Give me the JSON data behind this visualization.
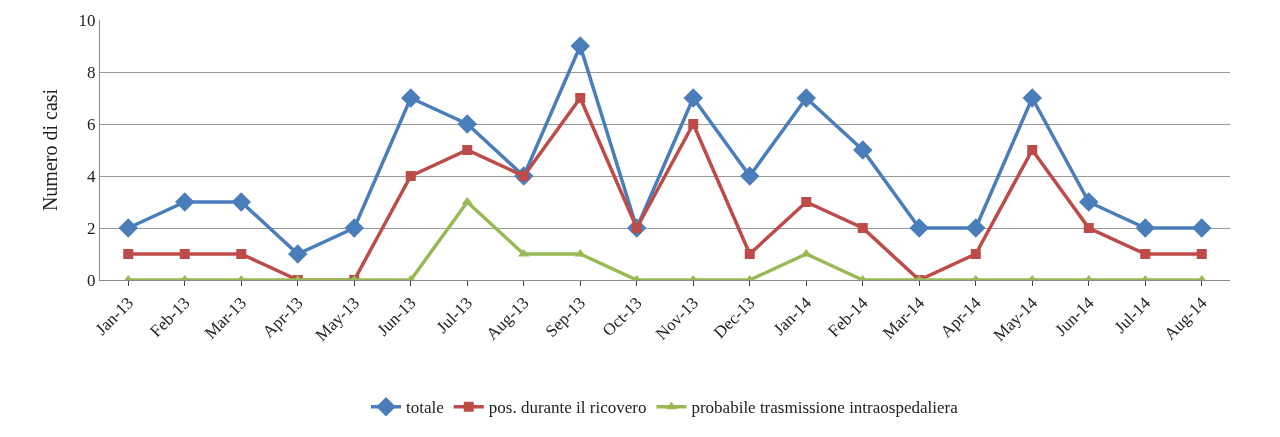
{
  "chart_data": {
    "type": "line",
    "ylabel": "Numero di casi",
    "categories": [
      "Jan-13",
      "Feb-13",
      "Mar-13",
      "Apr-13",
      "May-13",
      "Jun-13",
      "Jul-13",
      "Aug-13",
      "Sep-13",
      "Oct-13",
      "Nov-13",
      "Dec-13",
      "Jan-14",
      "Feb-14",
      "Mar-14",
      "Apr-14",
      "May-14",
      "Jun-14",
      "Jul-14",
      "Aug-14"
    ],
    "series": [
      {
        "name": "totale",
        "color": "#4a7ebb",
        "marker": "diamond",
        "values": [
          2,
          3,
          3,
          1,
          2,
          7,
          6,
          4,
          9,
          2,
          7,
          4,
          7,
          5,
          2,
          2,
          7,
          3,
          2,
          2
        ]
      },
      {
        "name": "pos. durante il ricovero",
        "color": "#be4b48",
        "marker": "square",
        "values": [
          1,
          1,
          1,
          0,
          0,
          4,
          5,
          4,
          7,
          2,
          6,
          1,
          3,
          2,
          0,
          1,
          5,
          2,
          1,
          1
        ]
      },
      {
        "name": "probabile trasmissione intraospedaliera",
        "color": "#98b954",
        "marker": "triangle",
        "values": [
          0,
          0,
          0,
          0,
          0,
          0,
          3,
          1,
          1,
          0,
          0,
          0,
          1,
          0,
          0,
          0,
          0,
          0,
          0,
          0
        ]
      }
    ],
    "ylim": [
      0,
      10
    ],
    "yticks": [
      0,
      2,
      4,
      6,
      8,
      10
    ],
    "grid": "y",
    "legend": "bottom",
    "line_style": "solid"
  }
}
